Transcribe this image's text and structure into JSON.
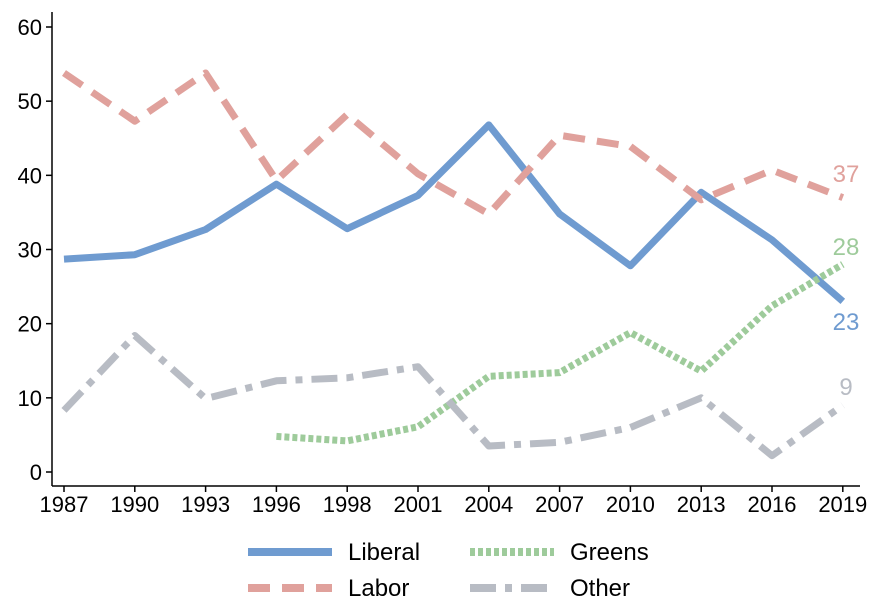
{
  "chart_data": {
    "type": "line",
    "title": "",
    "xlabel": "",
    "ylabel": "",
    "x": [
      "1987",
      "1990",
      "1993",
      "1996",
      "1998",
      "2001",
      "2004",
      "2007",
      "2010",
      "2013",
      "2016",
      "2019"
    ],
    "ylim": [
      0,
      60
    ],
    "y_ticks": [
      "0",
      "10",
      "20",
      "30",
      "40",
      "50",
      "60"
    ],
    "grid": false,
    "legend_position": "bottom",
    "series": [
      {
        "name": "Liberal",
        "color": "#6f9bd0",
        "dash": "solid",
        "values": [
          28.7,
          29.3,
          32.7,
          38.8,
          32.8,
          37.3,
          46.8,
          34.8,
          27.8,
          37.7,
          31.3,
          23
        ],
        "end_label": "23"
      },
      {
        "name": "Labor",
        "color": "#e0a19c",
        "dash": "dashed",
        "values": [
          53.8,
          47.3,
          53.8,
          39.3,
          48.2,
          40.2,
          34.8,
          45.4,
          43.9,
          36.7,
          40.7,
          37
        ],
        "end_label": "37"
      },
      {
        "name": "Greens",
        "color": "#9ecb9b",
        "dash": "dotted",
        "values": [
          null,
          null,
          null,
          4.8,
          4.2,
          6.1,
          12.9,
          13.4,
          18.8,
          13.6,
          22.4,
          28
        ],
        "end_label": "28"
      },
      {
        "name": "Other",
        "color": "#b8bcc4",
        "dash": "dashdot",
        "values": [
          8.3,
          18.4,
          9.9,
          12.3,
          12.7,
          14.2,
          3.5,
          4.0,
          6.0,
          10.0,
          2.2,
          9
        ],
        "end_label": "9"
      }
    ]
  }
}
